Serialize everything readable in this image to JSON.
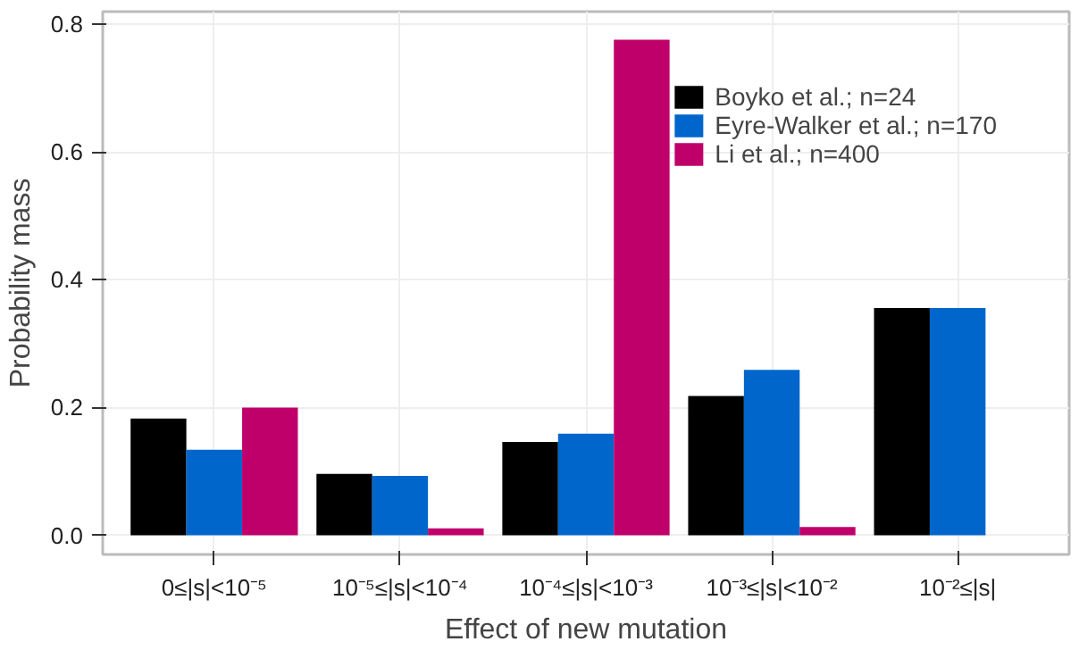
{
  "chart_data": {
    "type": "bar",
    "xlabel": "Effect of new mutation",
    "ylabel": "Probability mass",
    "categories": [
      "0≤|s|<10⁻⁵",
      "10⁻⁵≤|s|<10⁻⁴",
      "10⁻⁴≤|s|<10⁻³",
      "10⁻³≤|s|<10⁻²",
      "10⁻²≤|s|"
    ],
    "series": [
      {
        "name": "Boyko et al.; n=24",
        "color": "#000000",
        "values": [
          0.183,
          0.096,
          0.146,
          0.218,
          0.356
        ]
      },
      {
        "name": "Eyre-Walker et al.; n=170",
        "color": "#0066cc",
        "values": [
          0.134,
          0.093,
          0.159,
          0.259,
          0.356
        ]
      },
      {
        "name": "Li et al.; n=400",
        "color": "#c0006a",
        "values": [
          0.2,
          0.011,
          0.776,
          0.013,
          null
        ]
      }
    ],
    "ylim": [
      -0.03,
      0.82
    ],
    "yticks": [
      {
        "value": 0,
        "label": "0.0"
      },
      0.2,
      0.4,
      0.6,
      0.8
    ],
    "grid": true,
    "legend": "top right"
  }
}
